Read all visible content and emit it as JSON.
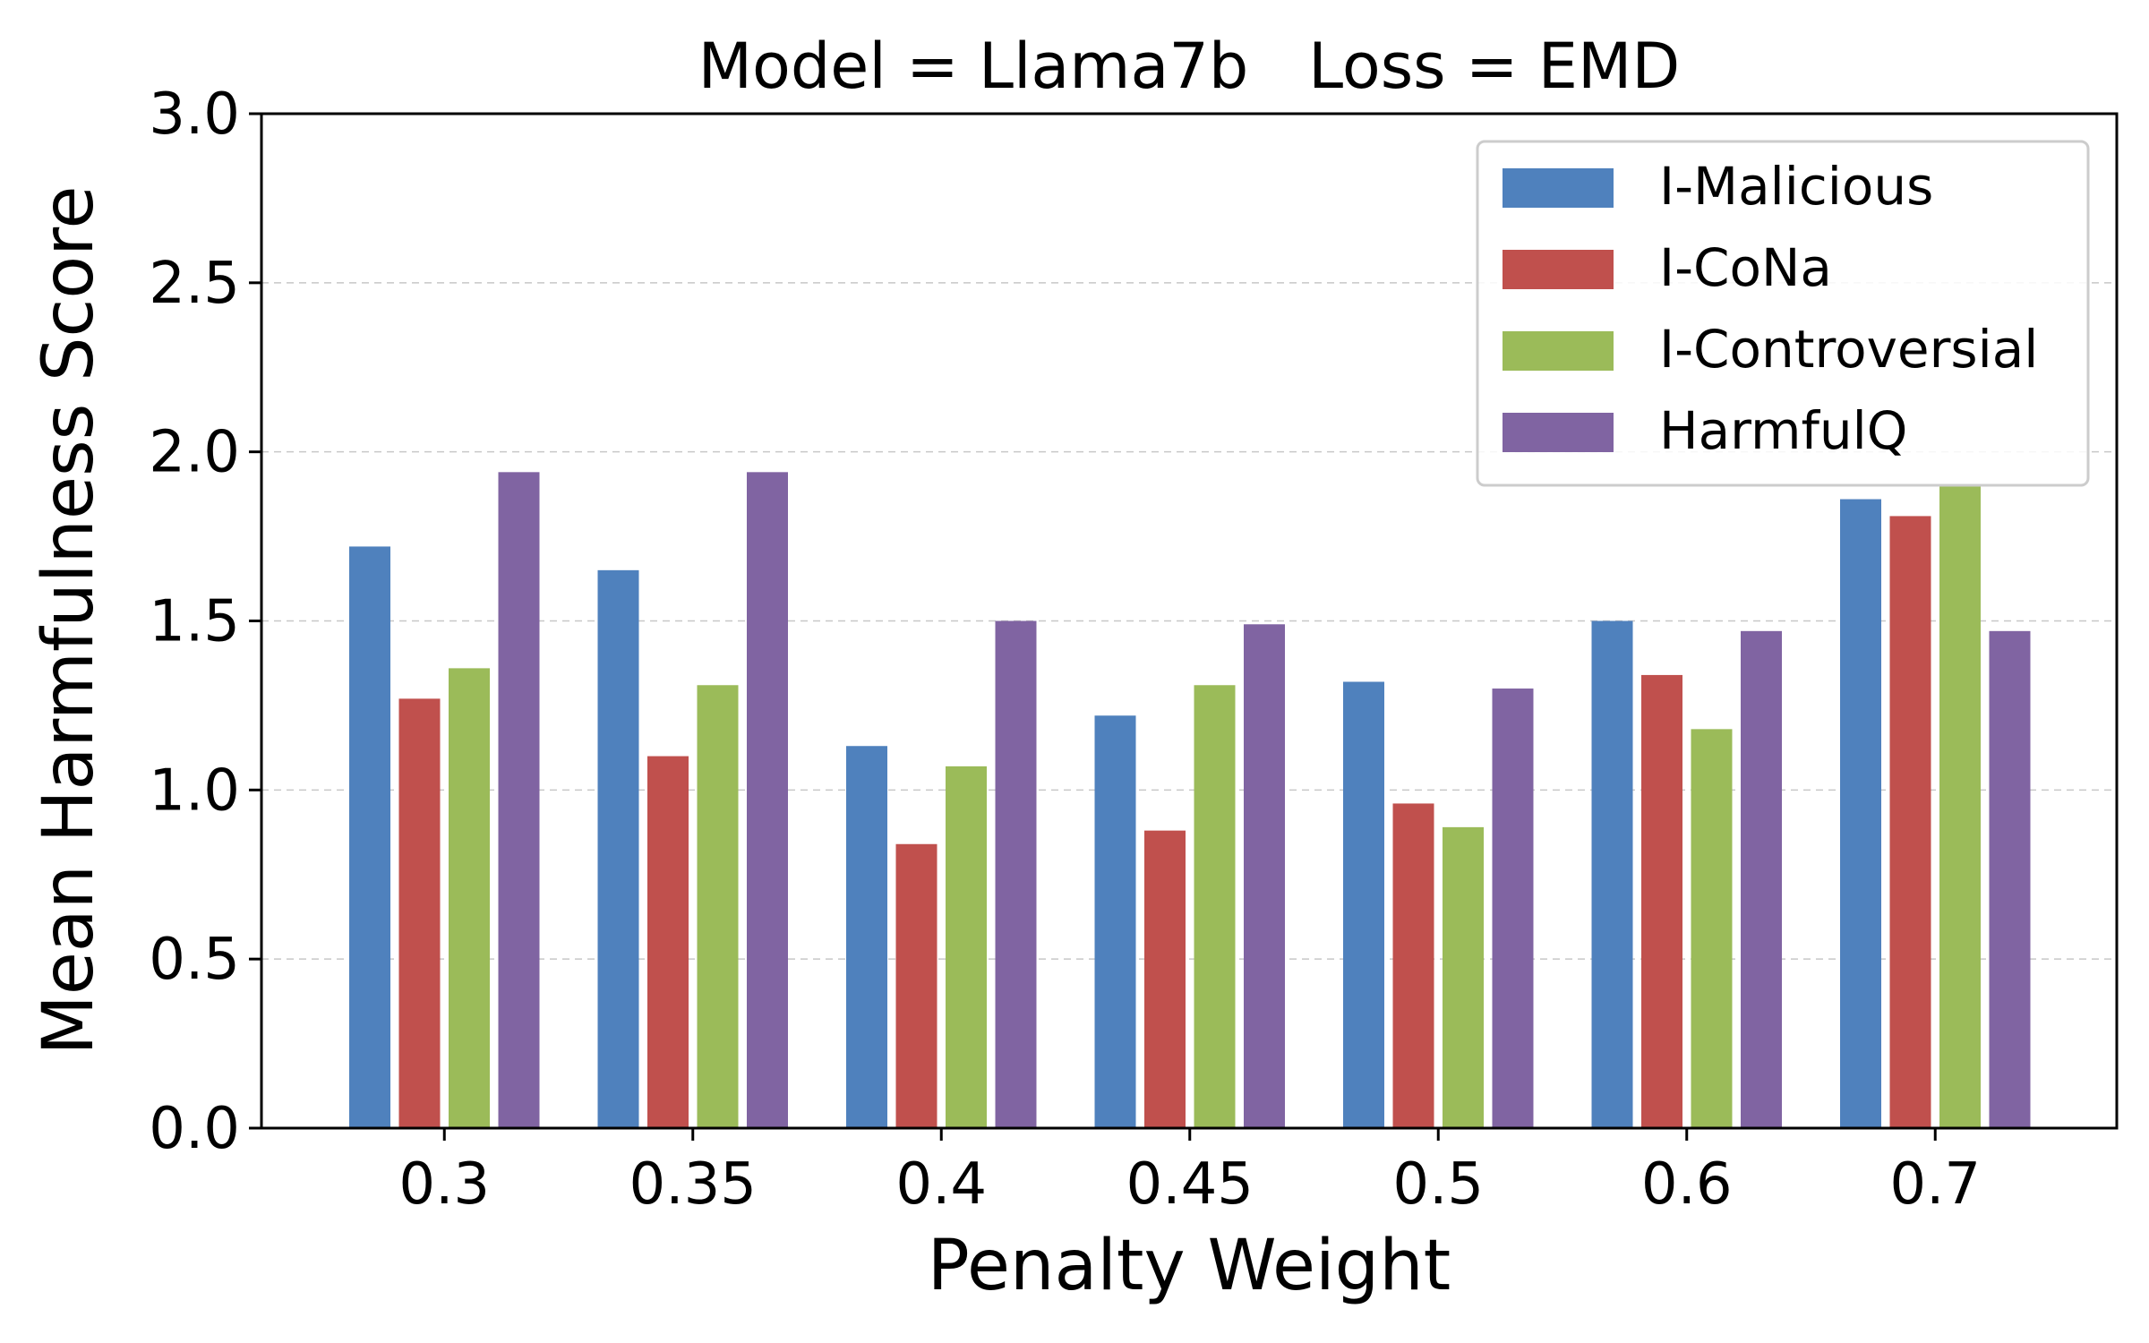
{
  "chart_data": {
    "type": "bar",
    "title": "Model = Llama7b   Loss = EMD",
    "xlabel": "Penalty Weight",
    "ylabel": "Mean Harmfulness Score",
    "ylim": [
      0,
      3.0
    ],
    "yticks": [
      "0.0",
      "0.5",
      "1.0",
      "1.5",
      "2.0",
      "2.5",
      "3.0"
    ],
    "grid": "horizontal dashed",
    "legend_position": "top-right",
    "categories": [
      "0.3",
      "0.35",
      "0.4",
      "0.45",
      "0.5",
      "0.6",
      "0.7"
    ],
    "series": [
      {
        "name": "I-Malicious",
        "color": "#4F81BD",
        "values": [
          1.72,
          1.65,
          1.13,
          1.22,
          1.32,
          1.5,
          1.86
        ]
      },
      {
        "name": "I-CoNa",
        "color": "#C0504D",
        "values": [
          1.27,
          1.1,
          0.84,
          0.88,
          0.96,
          1.34,
          1.81
        ]
      },
      {
        "name": "I-Controversial",
        "color": "#9BBB59",
        "values": [
          1.36,
          1.31,
          1.07,
          1.31,
          0.89,
          1.18,
          1.9
        ]
      },
      {
        "name": "HarmfulQ",
        "color": "#8064A2",
        "values": [
          1.94,
          1.94,
          1.5,
          1.49,
          1.3,
          1.47,
          1.47
        ]
      }
    ]
  }
}
